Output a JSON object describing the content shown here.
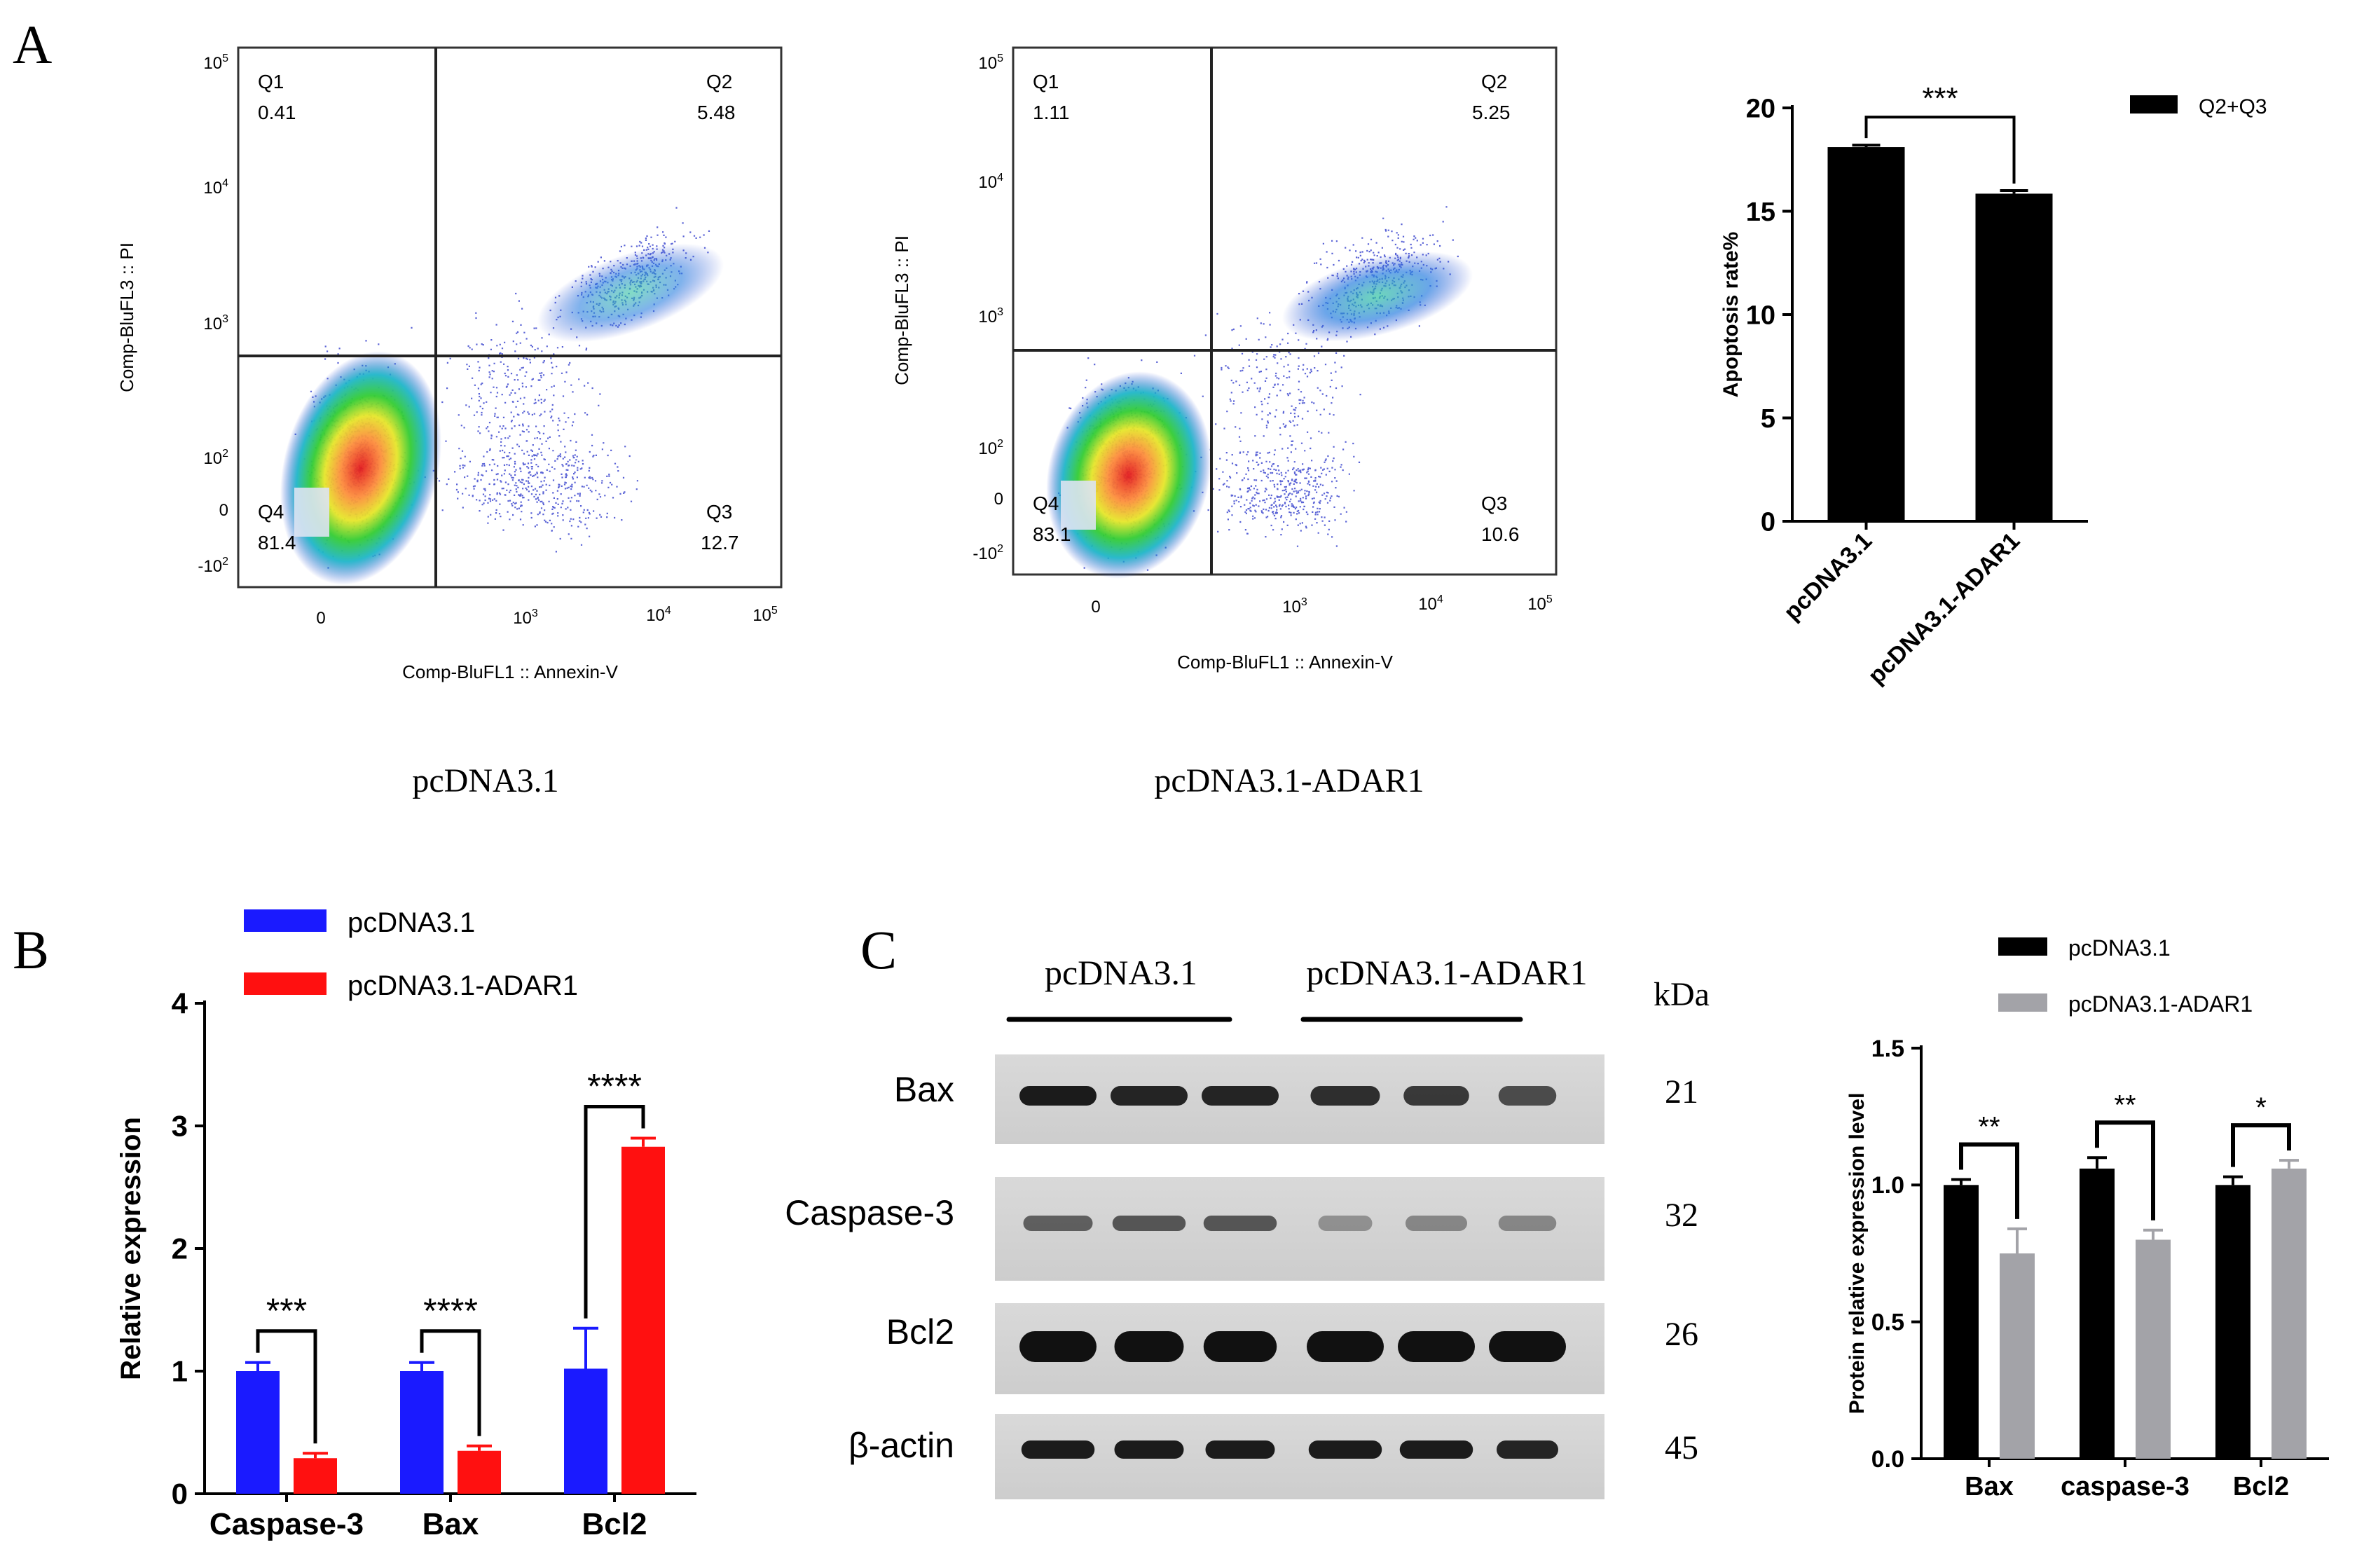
{
  "panel_labels": {
    "a": "A",
    "b": "B",
    "c": "C"
  },
  "flow": [
    {
      "caption": "pcDNA3.1",
      "xlabel": "Comp-BluFL1 :: Annexin-V",
      "ylabel": "Comp-BluFL3 :: PI",
      "q1": {
        "name": "Q1",
        "value": "0.41"
      },
      "q2": {
        "name": "Q2",
        "value": "5.48"
      },
      "q3": {
        "name": "Q3",
        "value": "12.7"
      },
      "q4": {
        "name": "Q4",
        "value": "81.4"
      }
    },
    {
      "caption": "pcDNA3.1-ADAR1",
      "xlabel": "Comp-BluFL1 :: Annexin-V",
      "ylabel": "Comp-BluFL3 :: PI",
      "q1": {
        "name": "Q1",
        "value": "1.11"
      },
      "q2": {
        "name": "Q2",
        "value": "5.25"
      },
      "q3": {
        "name": "Q3",
        "value": "10.6"
      },
      "q4": {
        "name": "Q4",
        "value": "83.1"
      }
    }
  ],
  "western": {
    "groups": [
      "pcDNA3.1",
      "pcDNA3.1-ADAR1"
    ],
    "unit": "kDa",
    "proteins": [
      "Bax",
      "Caspase-3",
      "Bcl2",
      "β-actin"
    ],
    "sizes": [
      "21",
      "32",
      "26",
      "45"
    ]
  },
  "colors": {
    "black": "#000000",
    "blue": "#1a1aff",
    "red": "#ff1010",
    "gray": "#a3a3a8"
  },
  "chart_data": [
    {
      "type": "bar",
      "title": "",
      "categories": [
        "pcDNA3.1",
        "pcDNA3.1-ADAR1"
      ],
      "series": [
        {
          "name": "Q2+Q3",
          "values": [
            18.1,
            15.85
          ],
          "errors": [
            0.1,
            0.15
          ]
        }
      ],
      "ylabel": "Apoptosis rate%",
      "xlabel": "",
      "ylim": [
        0,
        20
      ],
      "yticks": [
        "0",
        "5",
        "10",
        "15",
        "20"
      ],
      "significance": [
        "***"
      ]
    },
    {
      "type": "bar",
      "title": "",
      "categories": [
        "Caspase-3",
        "Bax",
        "Bcl2"
      ],
      "series": [
        {
          "name": "pcDNA3.1",
          "values": [
            1.0,
            1.0,
            1.02
          ],
          "errors": [
            0.07,
            0.07,
            0.33
          ]
        },
        {
          "name": "pcDNA3.1-ADAR1",
          "values": [
            0.29,
            0.35,
            2.83
          ],
          "errors": [
            0.04,
            0.04,
            0.07
          ]
        }
      ],
      "ylabel": "Relative expression",
      "xlabel": "",
      "ylim": [
        0,
        4
      ],
      "yticks": [
        "0",
        "1",
        "2",
        "3",
        "4"
      ],
      "significance": [
        "***",
        "****",
        "****"
      ]
    },
    {
      "type": "bar",
      "title": "",
      "categories": [
        "Bax",
        "caspase-3",
        "Bcl2"
      ],
      "series": [
        {
          "name": "pcDNA3.1",
          "values": [
            1.0,
            1.06,
            1.0
          ],
          "errors": [
            0.02,
            0.04,
            0.03
          ]
        },
        {
          "name": "pcDNA3.1-ADAR1",
          "values": [
            0.75,
            0.8,
            1.06
          ],
          "errors": [
            0.09,
            0.035,
            0.03
          ]
        }
      ],
      "ylabel": "Protein relative   expression level",
      "xlabel": "",
      "ylim": [
        0,
        1.5
      ],
      "yticks": [
        "0.0",
        "0.5",
        "1.0",
        "1.5"
      ],
      "significance": [
        "**",
        "**",
        "*"
      ]
    }
  ]
}
